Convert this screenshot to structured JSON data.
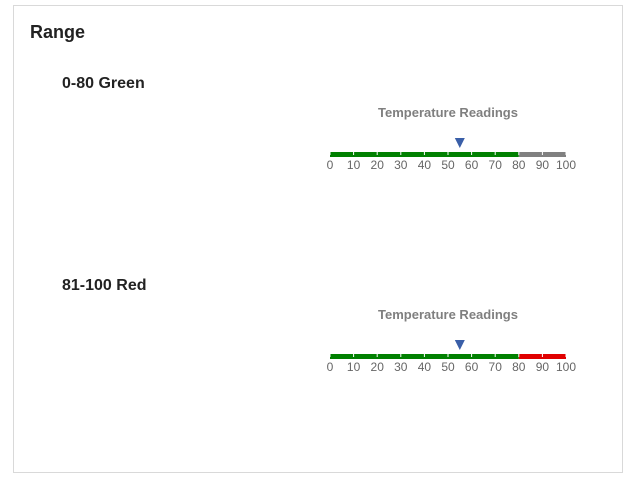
{
  "panel": {
    "title": "Range"
  },
  "chart_data": [
    {
      "type": "bullet",
      "label": "0-80 Green",
      "title": "Temperature Readings",
      "min": 0,
      "max": 100,
      "ticks": [
        0,
        10,
        20,
        30,
        40,
        50,
        60,
        70,
        80,
        90,
        100
      ],
      "marker_value": 55,
      "ranges": [
        {
          "from": 0,
          "to": 80,
          "color": "#008000"
        },
        {
          "from": 80,
          "to": 100,
          "color": "#808080"
        }
      ],
      "marker_color": "#3a5fa8"
    },
    {
      "type": "bullet",
      "label": "81-100 Red",
      "title": "Temperature Readings",
      "min": 0,
      "max": 100,
      "ticks": [
        0,
        10,
        20,
        30,
        40,
        50,
        60,
        70,
        80,
        90,
        100
      ],
      "marker_value": 55,
      "ranges": [
        {
          "from": 0,
          "to": 80,
          "color": "#008000"
        },
        {
          "from": 80,
          "to": 100,
          "color": "#e00000"
        }
      ],
      "marker_color": "#3a5fa8"
    }
  ]
}
